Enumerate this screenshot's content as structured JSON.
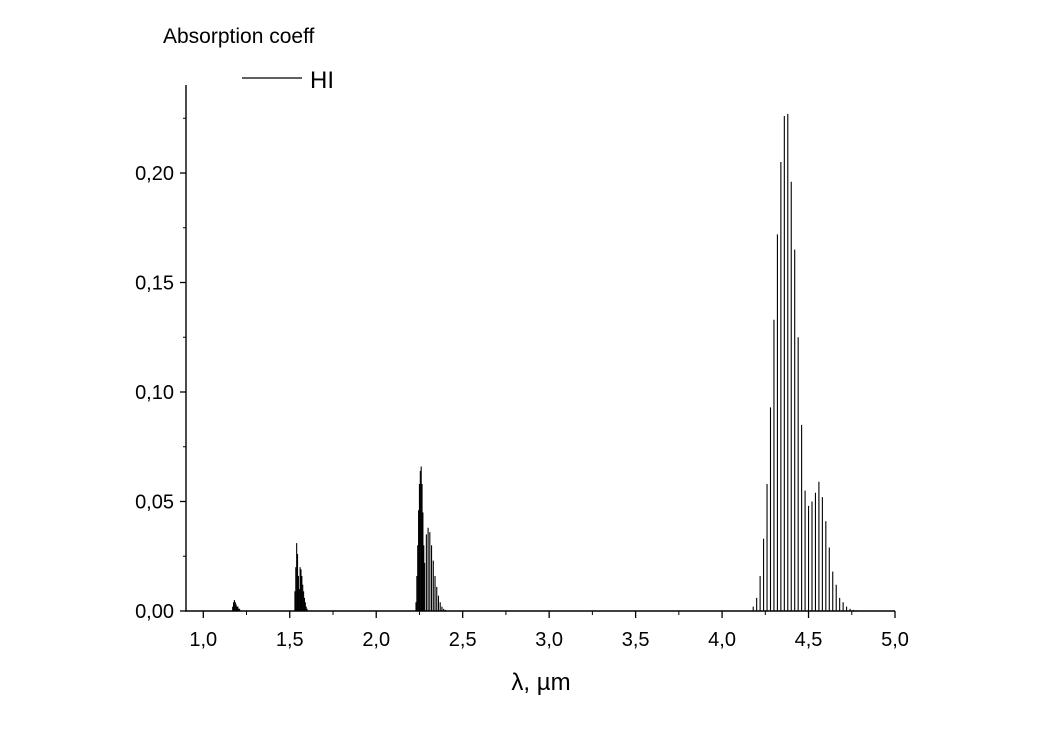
{
  "chart_data": {
    "type": "line",
    "ylabel": "Absorption coeff",
    "xlabel": "λ, µm",
    "xlim": [
      0.9,
      5.0
    ],
    "ylim": [
      0.0,
      0.24
    ],
    "x_ticks": [
      1.0,
      1.5,
      2.0,
      2.5,
      3.0,
      3.5,
      4.0,
      4.5,
      5.0
    ],
    "y_ticks": [
      0.0,
      0.05,
      0.1,
      0.15,
      0.2
    ],
    "x_tick_labels": [
      "1,0",
      "1,5",
      "2,0",
      "2,5",
      "3,0",
      "3,5",
      "4,0",
      "4,5",
      "5,0"
    ],
    "y_tick_labels": [
      "0,00",
      "0,05",
      "0,10",
      "0,15",
      "0,20"
    ],
    "legend_position": "top-left",
    "grid": false,
    "line_color": "#000000",
    "series": [
      {
        "name": "HI",
        "x": [
          1.17,
          1.175,
          1.18,
          1.185,
          1.19,
          1.195,
          1.2,
          1.205,
          1.21,
          1.53,
          1.535,
          1.54,
          1.545,
          1.55,
          1.555,
          1.56,
          1.565,
          1.57,
          1.575,
          1.58,
          1.585,
          1.59,
          1.595,
          1.6,
          2.23,
          2.235,
          2.24,
          2.245,
          2.25,
          2.255,
          2.26,
          2.265,
          2.27,
          2.275,
          2.28,
          2.29,
          2.3,
          2.31,
          2.32,
          2.33,
          2.34,
          2.35,
          2.36,
          2.37,
          2.38,
          2.39,
          2.4,
          4.18,
          4.2,
          4.22,
          4.24,
          4.26,
          4.28,
          4.3,
          4.32,
          4.34,
          4.36,
          4.38,
          4.4,
          4.42,
          4.44,
          4.46,
          4.48,
          4.5,
          4.52,
          4.54,
          4.56,
          4.58,
          4.6,
          4.62,
          4.64,
          4.66,
          4.68,
          4.7,
          4.72,
          4.74,
          4.76,
          4.78,
          4.8
        ],
        "y": [
          0.002,
          0.004,
          0.005,
          0.004,
          0.003,
          0.002,
          0.002,
          0.001,
          0.001,
          0.009,
          0.02,
          0.031,
          0.026,
          0.016,
          0.01,
          0.02,
          0.019,
          0.016,
          0.012,
          0.009,
          0.006,
          0.004,
          0.002,
          0.001,
          0.004,
          0.016,
          0.03,
          0.046,
          0.058,
          0.064,
          0.066,
          0.058,
          0.045,
          0.03,
          0.022,
          0.035,
          0.038,
          0.036,
          0.03,
          0.023,
          0.016,
          0.011,
          0.007,
          0.004,
          0.002,
          0.001,
          0.0005,
          0.002,
          0.006,
          0.016,
          0.033,
          0.058,
          0.093,
          0.133,
          0.172,
          0.205,
          0.226,
          0.227,
          0.196,
          0.165,
          0.125,
          0.085,
          0.055,
          0.048,
          0.05,
          0.054,
          0.059,
          0.052,
          0.041,
          0.029,
          0.018,
          0.012,
          0.006,
          0.004,
          0.002,
          0.001,
          0.0005,
          0.0003,
          0.0002
        ]
      }
    ]
  }
}
